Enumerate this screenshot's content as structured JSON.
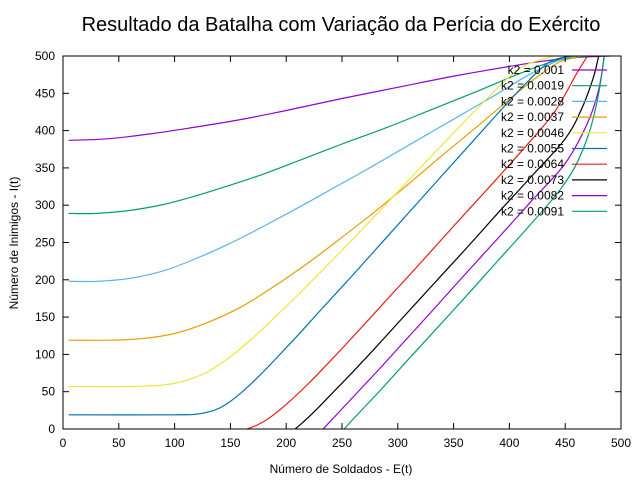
{
  "chart_data": {
    "type": "line",
    "title": "Resultado da Batalha com Variação da Perícia do Exército",
    "xlabel": "Número de Soldados - E(t)",
    "ylabel": "Número de Inimigos - I(t)",
    "xlim": [
      0,
      500
    ],
    "ylim": [
      0,
      500
    ],
    "xticks": [
      0,
      50,
      100,
      150,
      200,
      250,
      300,
      350,
      400,
      450,
      500
    ],
    "yticks": [
      0,
      50,
      100,
      150,
      200,
      250,
      300,
      350,
      400,
      450,
      500
    ],
    "xtick_labels": [
      "0",
      "50",
      "100",
      "150",
      "200",
      "250",
      "300",
      "350",
      "400",
      "450",
      "500"
    ],
    "ytick_labels": [
      "0",
      "50",
      "100",
      "150",
      "200",
      "250",
      "300",
      "350",
      "400",
      "450",
      "500"
    ],
    "grid": false,
    "legend_position": "top-right",
    "series": [
      {
        "name": "k2 = 0.001",
        "color": "#9400d3",
        "points": [
          [
            5,
            387
          ],
          [
            40,
            389
          ],
          [
            80,
            396
          ],
          [
            120,
            405
          ],
          [
            160,
            415
          ],
          [
            200,
            427
          ],
          [
            250,
            443
          ],
          [
            300,
            458
          ],
          [
            350,
            473
          ],
          [
            400,
            486
          ],
          [
            430,
            493
          ],
          [
            460,
            498
          ],
          [
            490,
            500
          ]
        ]
      },
      {
        "name": "k2 = 0.0019",
        "color": "#009e73",
        "points": [
          [
            5,
            289
          ],
          [
            30,
            289
          ],
          [
            60,
            293
          ],
          [
            90,
            301
          ],
          [
            120,
            313
          ],
          [
            150,
            327
          ],
          [
            180,
            342
          ],
          [
            210,
            359
          ],
          [
            250,
            382
          ],
          [
            290,
            404
          ],
          [
            330,
            428
          ],
          [
            370,
            452
          ],
          [
            410,
            477
          ],
          [
            440,
            493
          ],
          [
            470,
            500
          ]
        ]
      },
      {
        "name": "k2 = 0.0028",
        "color": "#56b4e9",
        "points": [
          [
            5,
            198
          ],
          [
            30,
            198
          ],
          [
            60,
            202
          ],
          [
            90,
            212
          ],
          [
            120,
            229
          ],
          [
            150,
            249
          ],
          [
            180,
            272
          ],
          [
            210,
            296
          ],
          [
            240,
            321
          ],
          [
            270,
            346
          ],
          [
            300,
            372
          ],
          [
            330,
            398
          ],
          [
            360,
            424
          ],
          [
            390,
            450
          ],
          [
            420,
            477
          ],
          [
            450,
            497
          ],
          [
            470,
            500
          ]
        ]
      },
      {
        "name": "k2 = 0.0037",
        "color": "#e69f00",
        "points": [
          [
            5,
            119
          ],
          [
            40,
            119
          ],
          [
            70,
            121
          ],
          [
            100,
            128
          ],
          [
            130,
            143
          ],
          [
            160,
            164
          ],
          [
            190,
            192
          ],
          [
            220,
            223
          ],
          [
            250,
            257
          ],
          [
            280,
            292
          ],
          [
            310,
            329
          ],
          [
            340,
            367
          ],
          [
            370,
            404
          ],
          [
            400,
            442
          ],
          [
            425,
            472
          ],
          [
            445,
            492
          ],
          [
            465,
            500
          ]
        ]
      },
      {
        "name": "k2 = 0.0046",
        "color": "#f0e442",
        "points": [
          [
            5,
            57
          ],
          [
            60,
            57
          ],
          [
            90,
            59
          ],
          [
            110,
            65
          ],
          [
            130,
            77
          ],
          [
            150,
            97
          ],
          [
            170,
            122
          ],
          [
            190,
            150
          ],
          [
            210,
            179
          ],
          [
            230,
            209
          ],
          [
            260,
            255
          ],
          [
            290,
            302
          ],
          [
            320,
            350
          ],
          [
            350,
            397
          ],
          [
            380,
            443
          ],
          [
            410,
            484
          ],
          [
            440,
            500
          ]
        ]
      },
      {
        "name": "k2 = 0.0055",
        "color": "#0072b2",
        "points": [
          [
            5,
            19
          ],
          [
            100,
            19
          ],
          [
            120,
            20
          ],
          [
            135,
            25
          ],
          [
            145,
            32
          ],
          [
            160,
            49
          ],
          [
            175,
            70
          ],
          [
            190,
            93
          ],
          [
            210,
            125
          ],
          [
            230,
            158
          ],
          [
            260,
            207
          ],
          [
            290,
            257
          ],
          [
            320,
            307
          ],
          [
            350,
            357
          ],
          [
            380,
            407
          ],
          [
            410,
            456
          ],
          [
            435,
            491
          ],
          [
            455,
            500
          ]
        ]
      },
      {
        "name": "k2 = 0.0064",
        "color": "#e51e10",
        "points": [
          [
            165,
            0
          ],
          [
            175,
            6
          ],
          [
            185,
            15
          ],
          [
            200,
            33
          ],
          [
            220,
            61
          ],
          [
            240,
            92
          ],
          [
            260,
            124
          ],
          [
            290,
            173
          ],
          [
            320,
            222
          ],
          [
            350,
            272
          ],
          [
            380,
            321
          ],
          [
            410,
            371
          ],
          [
            440,
            424
          ],
          [
            460,
            476
          ],
          [
            470,
            500
          ]
        ]
      },
      {
        "name": "k2 = 0.0073",
        "color": "#000000",
        "points": [
          [
            208,
            0
          ],
          [
            215,
            9
          ],
          [
            225,
            23
          ],
          [
            240,
            46
          ],
          [
            260,
            77
          ],
          [
            280,
            109
          ],
          [
            300,
            142
          ],
          [
            330,
            191
          ],
          [
            360,
            240
          ],
          [
            390,
            290
          ],
          [
            420,
            339
          ],
          [
            450,
            389
          ],
          [
            465,
            430
          ],
          [
            475,
            470
          ],
          [
            480,
            500
          ]
        ]
      },
      {
        "name": "k2 = 0.0082",
        "color": "#9400d3",
        "points": [
          [
            233,
            0
          ],
          [
            240,
            11
          ],
          [
            250,
            27
          ],
          [
            265,
            51
          ],
          [
            285,
            83
          ],
          [
            305,
            116
          ],
          [
            330,
            157
          ],
          [
            360,
            207
          ],
          [
            390,
            256
          ],
          [
            420,
            306
          ],
          [
            450,
            356
          ],
          [
            470,
            410
          ],
          [
            480,
            455
          ],
          [
            485,
            500
          ]
        ]
      },
      {
        "name": "k2 = 0.0091",
        "color": "#009e73",
        "points": [
          [
            252,
            0
          ],
          [
            258,
            10
          ],
          [
            268,
            26
          ],
          [
            285,
            53
          ],
          [
            305,
            86
          ],
          [
            330,
            127
          ],
          [
            360,
            176
          ],
          [
            390,
            226
          ],
          [
            420,
            276
          ],
          [
            445,
            320
          ],
          [
            460,
            355
          ],
          [
            472,
            400
          ],
          [
            480,
            450
          ],
          [
            485,
            500
          ]
        ]
      }
    ]
  }
}
